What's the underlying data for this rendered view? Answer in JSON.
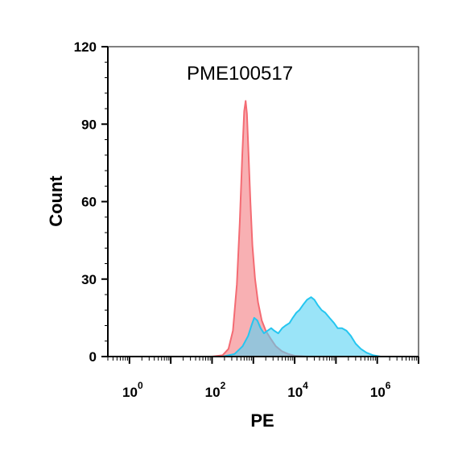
{
  "chart_data": {
    "type": "area",
    "title": "",
    "annotation": "PME100517",
    "xlabel": "PE",
    "ylabel": "Count",
    "xscale": "log",
    "xlim": [
      0.3,
      10000000
    ],
    "ylim": [
      0,
      120
    ],
    "grid": false,
    "legend": "none",
    "y_ticks": [
      0,
      30,
      60,
      90,
      120
    ],
    "x_ticks": [
      {
        "base": "10",
        "exp": "0",
        "value": 1
      },
      {
        "base": "10",
        "exp": "2",
        "value": 100
      },
      {
        "base": "10",
        "exp": "4",
        "value": 10000
      },
      {
        "base": "10",
        "exp": "6",
        "value": 1000000
      }
    ],
    "series": [
      {
        "color": "#f46b73",
        "fill": "#f7a7ab",
        "points": [
          [
            0.3,
            0
          ],
          [
            100,
            0
          ],
          [
            180,
            0.5
          ],
          [
            250,
            3
          ],
          [
            320,
            10
          ],
          [
            400,
            28
          ],
          [
            470,
            52
          ],
          [
            540,
            78
          ],
          [
            600,
            95
          ],
          [
            650,
            99
          ],
          [
            700,
            94
          ],
          [
            760,
            80
          ],
          [
            850,
            60
          ],
          [
            950,
            43
          ],
          [
            1100,
            30
          ],
          [
            1300,
            21
          ],
          [
            1600,
            14
          ],
          [
            2000,
            10
          ],
          [
            2600,
            7
          ],
          [
            3500,
            4
          ],
          [
            5000,
            2
          ],
          [
            7000,
            1
          ],
          [
            10000,
            0.3
          ],
          [
            20000,
            0
          ],
          [
            10000000,
            0
          ]
        ]
      },
      {
        "color": "#25c6f0",
        "fill": "#56d2f4",
        "points": [
          [
            0.3,
            0
          ],
          [
            180,
            0
          ],
          [
            350,
            1
          ],
          [
            550,
            4
          ],
          [
            750,
            8
          ],
          [
            900,
            12
          ],
          [
            1050,
            15
          ],
          [
            1250,
            14
          ],
          [
            1500,
            11
          ],
          [
            1800,
            9
          ],
          [
            2200,
            10
          ],
          [
            2700,
            11
          ],
          [
            3200,
            10
          ],
          [
            4000,
            9
          ],
          [
            5000,
            11
          ],
          [
            6000,
            12
          ],
          [
            7500,
            13
          ],
          [
            9000,
            15
          ],
          [
            11000,
            17
          ],
          [
            13000,
            18
          ],
          [
            16000,
            20
          ],
          [
            20000,
            22
          ],
          [
            25000,
            23
          ],
          [
            30000,
            22
          ],
          [
            36000,
            20
          ],
          [
            45000,
            18
          ],
          [
            55000,
            17
          ],
          [
            70000,
            15
          ],
          [
            90000,
            13
          ],
          [
            110000,
            11
          ],
          [
            140000,
            11
          ],
          [
            180000,
            10
          ],
          [
            230000,
            8
          ],
          [
            300000,
            5
          ],
          [
            400000,
            3
          ],
          [
            550000,
            1.5
          ],
          [
            800000,
            0.5
          ],
          [
            1200000,
            0
          ],
          [
            10000000,
            0
          ]
        ]
      }
    ]
  }
}
